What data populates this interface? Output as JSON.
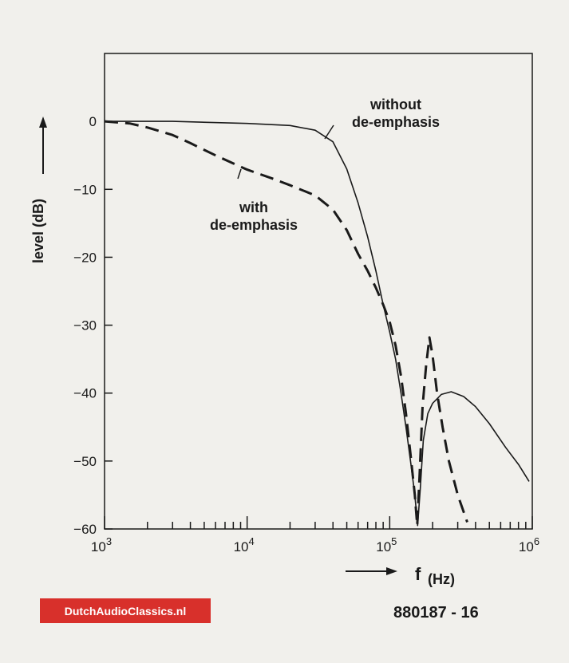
{
  "chart_data": {
    "type": "line",
    "title": "",
    "xlabel": "f",
    "xlabel_unit": "(Hz)",
    "ylabel": "level (dB)",
    "xscale": "log",
    "xlim": [
      1000,
      1000000
    ],
    "ylim": [
      -60,
      10
    ],
    "x_ticks": [
      {
        "base": "10",
        "exp": "3",
        "value": 1000
      },
      {
        "base": "10",
        "exp": "4",
        "value": 10000
      },
      {
        "base": "10",
        "exp": "5",
        "value": 100000
      },
      {
        "base": "10",
        "exp": "6",
        "value": 1000000
      }
    ],
    "y_ticks": [
      {
        "label": "0",
        "value": 0
      },
      {
        "label": "−10",
        "value": -10
      },
      {
        "label": "−20",
        "value": -20
      },
      {
        "label": "−30",
        "value": -30
      },
      {
        "label": "−40",
        "value": -40
      },
      {
        "label": "−50",
        "value": -50
      },
      {
        "label": "−60",
        "value": -60
      }
    ],
    "grid": false,
    "series": [
      {
        "name": "without de-emphasis",
        "label_lines": [
          "without",
          "de-emphasis"
        ],
        "style": "solid",
        "points": [
          [
            1000,
            0
          ],
          [
            3000,
            0
          ],
          [
            10000,
            -0.3
          ],
          [
            20000,
            -0.6
          ],
          [
            30000,
            -1.3
          ],
          [
            40000,
            -3
          ],
          [
            50000,
            -7
          ],
          [
            60000,
            -12
          ],
          [
            70000,
            -17
          ],
          [
            80000,
            -22
          ],
          [
            90000,
            -27
          ],
          [
            100000,
            -31
          ],
          [
            110000,
            -35
          ],
          [
            120000,
            -40
          ],
          [
            130000,
            -45
          ],
          [
            140000,
            -50
          ],
          [
            150000,
            -55
          ],
          [
            157000,
            -59.5
          ],
          [
            164000,
            -54
          ],
          [
            172000,
            -47
          ],
          [
            185000,
            -43
          ],
          [
            200000,
            -41.5
          ],
          [
            230000,
            -40.2
          ],
          [
            270000,
            -39.8
          ],
          [
            330000,
            -40.5
          ],
          [
            400000,
            -42
          ],
          [
            500000,
            -44.5
          ],
          [
            650000,
            -48
          ],
          [
            800000,
            -50.5
          ],
          [
            950000,
            -53
          ]
        ]
      },
      {
        "name": "with de-emphasis",
        "label_lines": [
          "with",
          "de-emphasis"
        ],
        "style": "dashed",
        "points": [
          [
            1000,
            0
          ],
          [
            1500,
            -0.3
          ],
          [
            2000,
            -0.9
          ],
          [
            3000,
            -2
          ],
          [
            4000,
            -3.2
          ],
          [
            5000,
            -4.2
          ],
          [
            6000,
            -5
          ],
          [
            8000,
            -6.2
          ],
          [
            10000,
            -7.1
          ],
          [
            15000,
            -8.4
          ],
          [
            20000,
            -9.4
          ],
          [
            30000,
            -10.9
          ],
          [
            40000,
            -13
          ],
          [
            50000,
            -16
          ],
          [
            60000,
            -19.5
          ],
          [
            70000,
            -22
          ],
          [
            80000,
            -24.5
          ],
          [
            90000,
            -27
          ],
          [
            100000,
            -29.5
          ],
          [
            110000,
            -33
          ],
          [
            120000,
            -37.5
          ],
          [
            130000,
            -43
          ],
          [
            140000,
            -49
          ],
          [
            150000,
            -55
          ],
          [
            156000,
            -59.5
          ],
          [
            162000,
            -52
          ],
          [
            170000,
            -42
          ],
          [
            180000,
            -36
          ],
          [
            190000,
            -31.8
          ],
          [
            200000,
            -34.5
          ],
          [
            215000,
            -40
          ],
          [
            235000,
            -45
          ],
          [
            260000,
            -50
          ],
          [
            300000,
            -55
          ],
          [
            350000,
            -59
          ]
        ]
      }
    ]
  },
  "figure_number": "880187 - 16",
  "watermark": "DutchAudioClassics.nl",
  "colors": {
    "background": "#f1f0ec",
    "ink": "#1a1a1a",
    "badge": "#d8302b"
  }
}
